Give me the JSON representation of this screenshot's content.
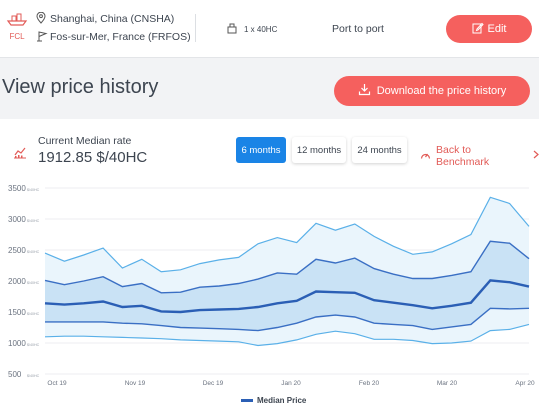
{
  "header": {
    "mode_label": "FCL",
    "origin": "Shanghai, China (CNSHA)",
    "destination": "Fos-sur-Mer, France (FRFOS)",
    "container": "1 x 40HC",
    "service": "Port to port",
    "edit_label": "Edit"
  },
  "page": {
    "title": "View price history",
    "download_label": "Download the price history"
  },
  "rate": {
    "label": "Current Median rate",
    "value": "1912.85 $/40HC"
  },
  "tabs": [
    {
      "label": "6 months",
      "active": true
    },
    {
      "label": "12 months",
      "active": false
    },
    {
      "label": "24 months",
      "active": false
    }
  ],
  "benchmark_label": "Back to Benchmark",
  "colors": {
    "accent": "#f5605e",
    "tab_active": "#1a84e6",
    "median": "#2b5fb5",
    "band": "#c9e2f5",
    "outer": "#5ab0e8"
  },
  "chart_data": {
    "type": "line",
    "yunit": "$/40HC",
    "ylim": [
      500,
      3500
    ],
    "yticks": [
      500,
      1000,
      1500,
      2000,
      2500,
      3000,
      3500
    ],
    "ytick_labels": [
      "500",
      "1000",
      "1500",
      "2000",
      "2500",
      "3000",
      "3500"
    ],
    "xtick_labels": [
      "Oct 19",
      "Nov 19",
      "Dec 19",
      "Jan 20",
      "Feb 20",
      "Mar 20",
      "Apr 20"
    ],
    "legend": "Median Price",
    "series": {
      "upper_outer": [
        2450,
        2320,
        2420,
        2530,
        2210,
        2350,
        2150,
        2180,
        2280,
        2340,
        2380,
        2600,
        2700,
        2620,
        2930,
        2820,
        2920,
        2720,
        2560,
        2430,
        2470,
        2600,
        2750,
        3350,
        3250,
        2880
      ],
      "upper_inner": [
        2010,
        1940,
        2000,
        2070,
        1910,
        1960,
        1810,
        1820,
        1900,
        1920,
        1960,
        2030,
        2130,
        2110,
        2350,
        2290,
        2370,
        2200,
        2110,
        2040,
        2040,
        2090,
        2150,
        2640,
        2610,
        2360
      ],
      "median": [
        1640,
        1620,
        1640,
        1670,
        1580,
        1600,
        1510,
        1500,
        1530,
        1540,
        1550,
        1580,
        1640,
        1680,
        1830,
        1820,
        1810,
        1690,
        1650,
        1610,
        1560,
        1600,
        1650,
        2010,
        1980,
        1910
      ],
      "lower_inner": [
        1340,
        1340,
        1340,
        1340,
        1320,
        1310,
        1280,
        1250,
        1240,
        1230,
        1220,
        1200,
        1250,
        1320,
        1420,
        1450,
        1420,
        1320,
        1300,
        1280,
        1220,
        1260,
        1300,
        1560,
        1550,
        1560
      ],
      "lower_outer": [
        1100,
        1110,
        1110,
        1100,
        1090,
        1080,
        1070,
        1050,
        1040,
        1030,
        1020,
        960,
        990,
        1050,
        1140,
        1190,
        1150,
        1060,
        1060,
        1040,
        990,
        1000,
        1030,
        1200,
        1220,
        1300
      ]
    }
  }
}
